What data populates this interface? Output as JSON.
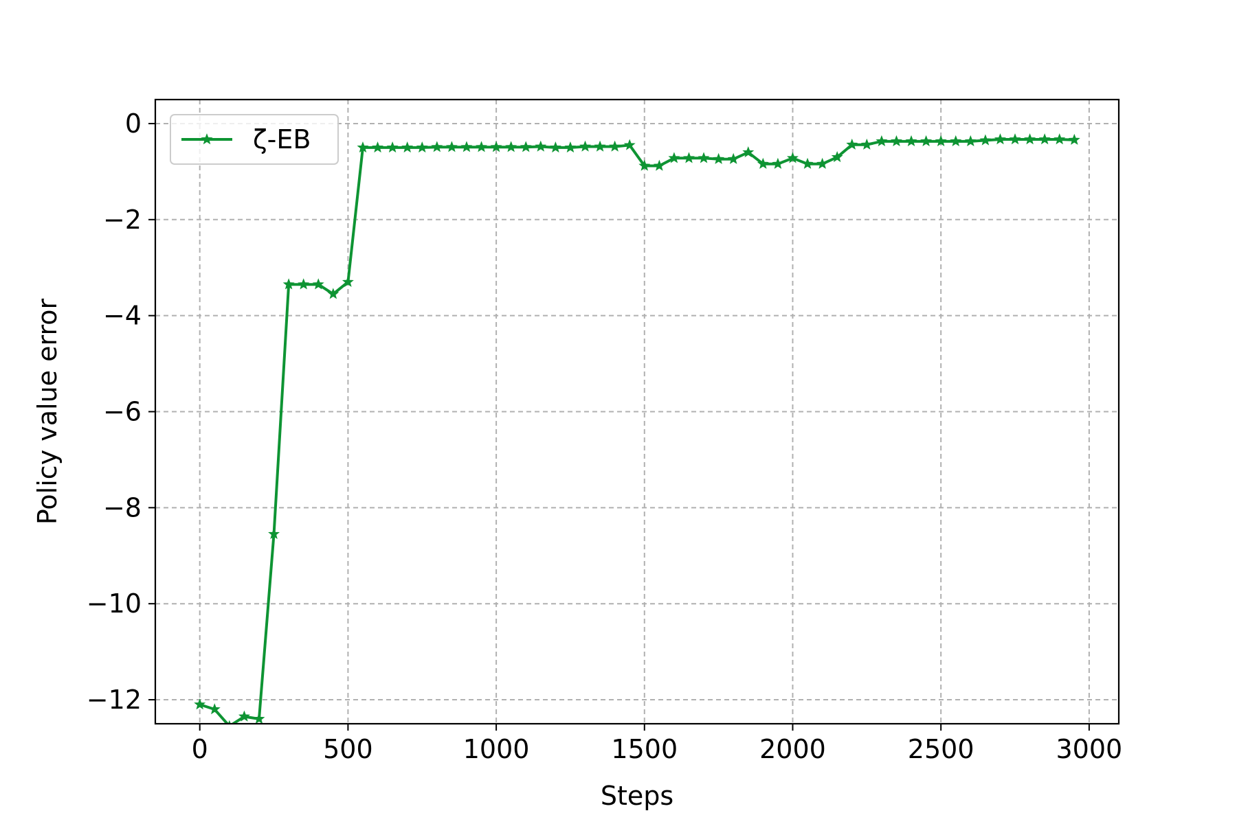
{
  "chart_data": {
    "type": "line",
    "xlabel": "Steps",
    "ylabel": "Policy value error",
    "xlim": [
      -150,
      3100
    ],
    "ylim": [
      -12.5,
      0.5
    ],
    "xticks": [
      0,
      500,
      1000,
      1500,
      2000,
      2500,
      3000
    ],
    "xtick_labels": [
      "0",
      "500",
      "1000",
      "1500",
      "2000",
      "2500",
      "3000"
    ],
    "yticks": [
      0,
      -2,
      -4,
      -6,
      -8,
      -10,
      -12
    ],
    "ytick_labels": [
      "0",
      "−2",
      "−4",
      "−6",
      "−8",
      "−10",
      "−12"
    ],
    "grid": true,
    "legend_position": "upper-left",
    "series": [
      {
        "name": "ζ-EB",
        "color": "#0e9433",
        "marker": "star",
        "x": [
          0,
          50,
          100,
          150,
          200,
          250,
          300,
          350,
          400,
          450,
          500,
          550,
          600,
          650,
          700,
          750,
          800,
          850,
          900,
          950,
          1000,
          1050,
          1100,
          1150,
          1200,
          1250,
          1300,
          1350,
          1400,
          1450,
          1500,
          1550,
          1600,
          1650,
          1700,
          1750,
          1800,
          1850,
          1900,
          1950,
          2000,
          2050,
          2100,
          2150,
          2200,
          2250,
          2300,
          2350,
          2400,
          2450,
          2500,
          2550,
          2600,
          2650,
          2700,
          2750,
          2800,
          2850,
          2900,
          2950
        ],
        "values": [
          -12.1,
          -12.2,
          -12.55,
          -12.35,
          -12.4,
          -8.55,
          -3.35,
          -3.35,
          -3.35,
          -3.55,
          -3.3,
          -0.5,
          -0.5,
          -0.5,
          -0.5,
          -0.5,
          -0.49,
          -0.49,
          -0.49,
          -0.49,
          -0.49,
          -0.49,
          -0.49,
          -0.48,
          -0.5,
          -0.5,
          -0.48,
          -0.48,
          -0.48,
          -0.45,
          -0.88,
          -0.88,
          -0.72,
          -0.72,
          -0.72,
          -0.74,
          -0.74,
          -0.6,
          -0.84,
          -0.84,
          -0.72,
          -0.84,
          -0.84,
          -0.7,
          -0.44,
          -0.44,
          -0.37,
          -0.37,
          -0.37,
          -0.37,
          -0.37,
          -0.37,
          -0.37,
          -0.35,
          -0.33,
          -0.33,
          -0.33,
          -0.33,
          -0.33,
          -0.34
        ]
      }
    ]
  }
}
